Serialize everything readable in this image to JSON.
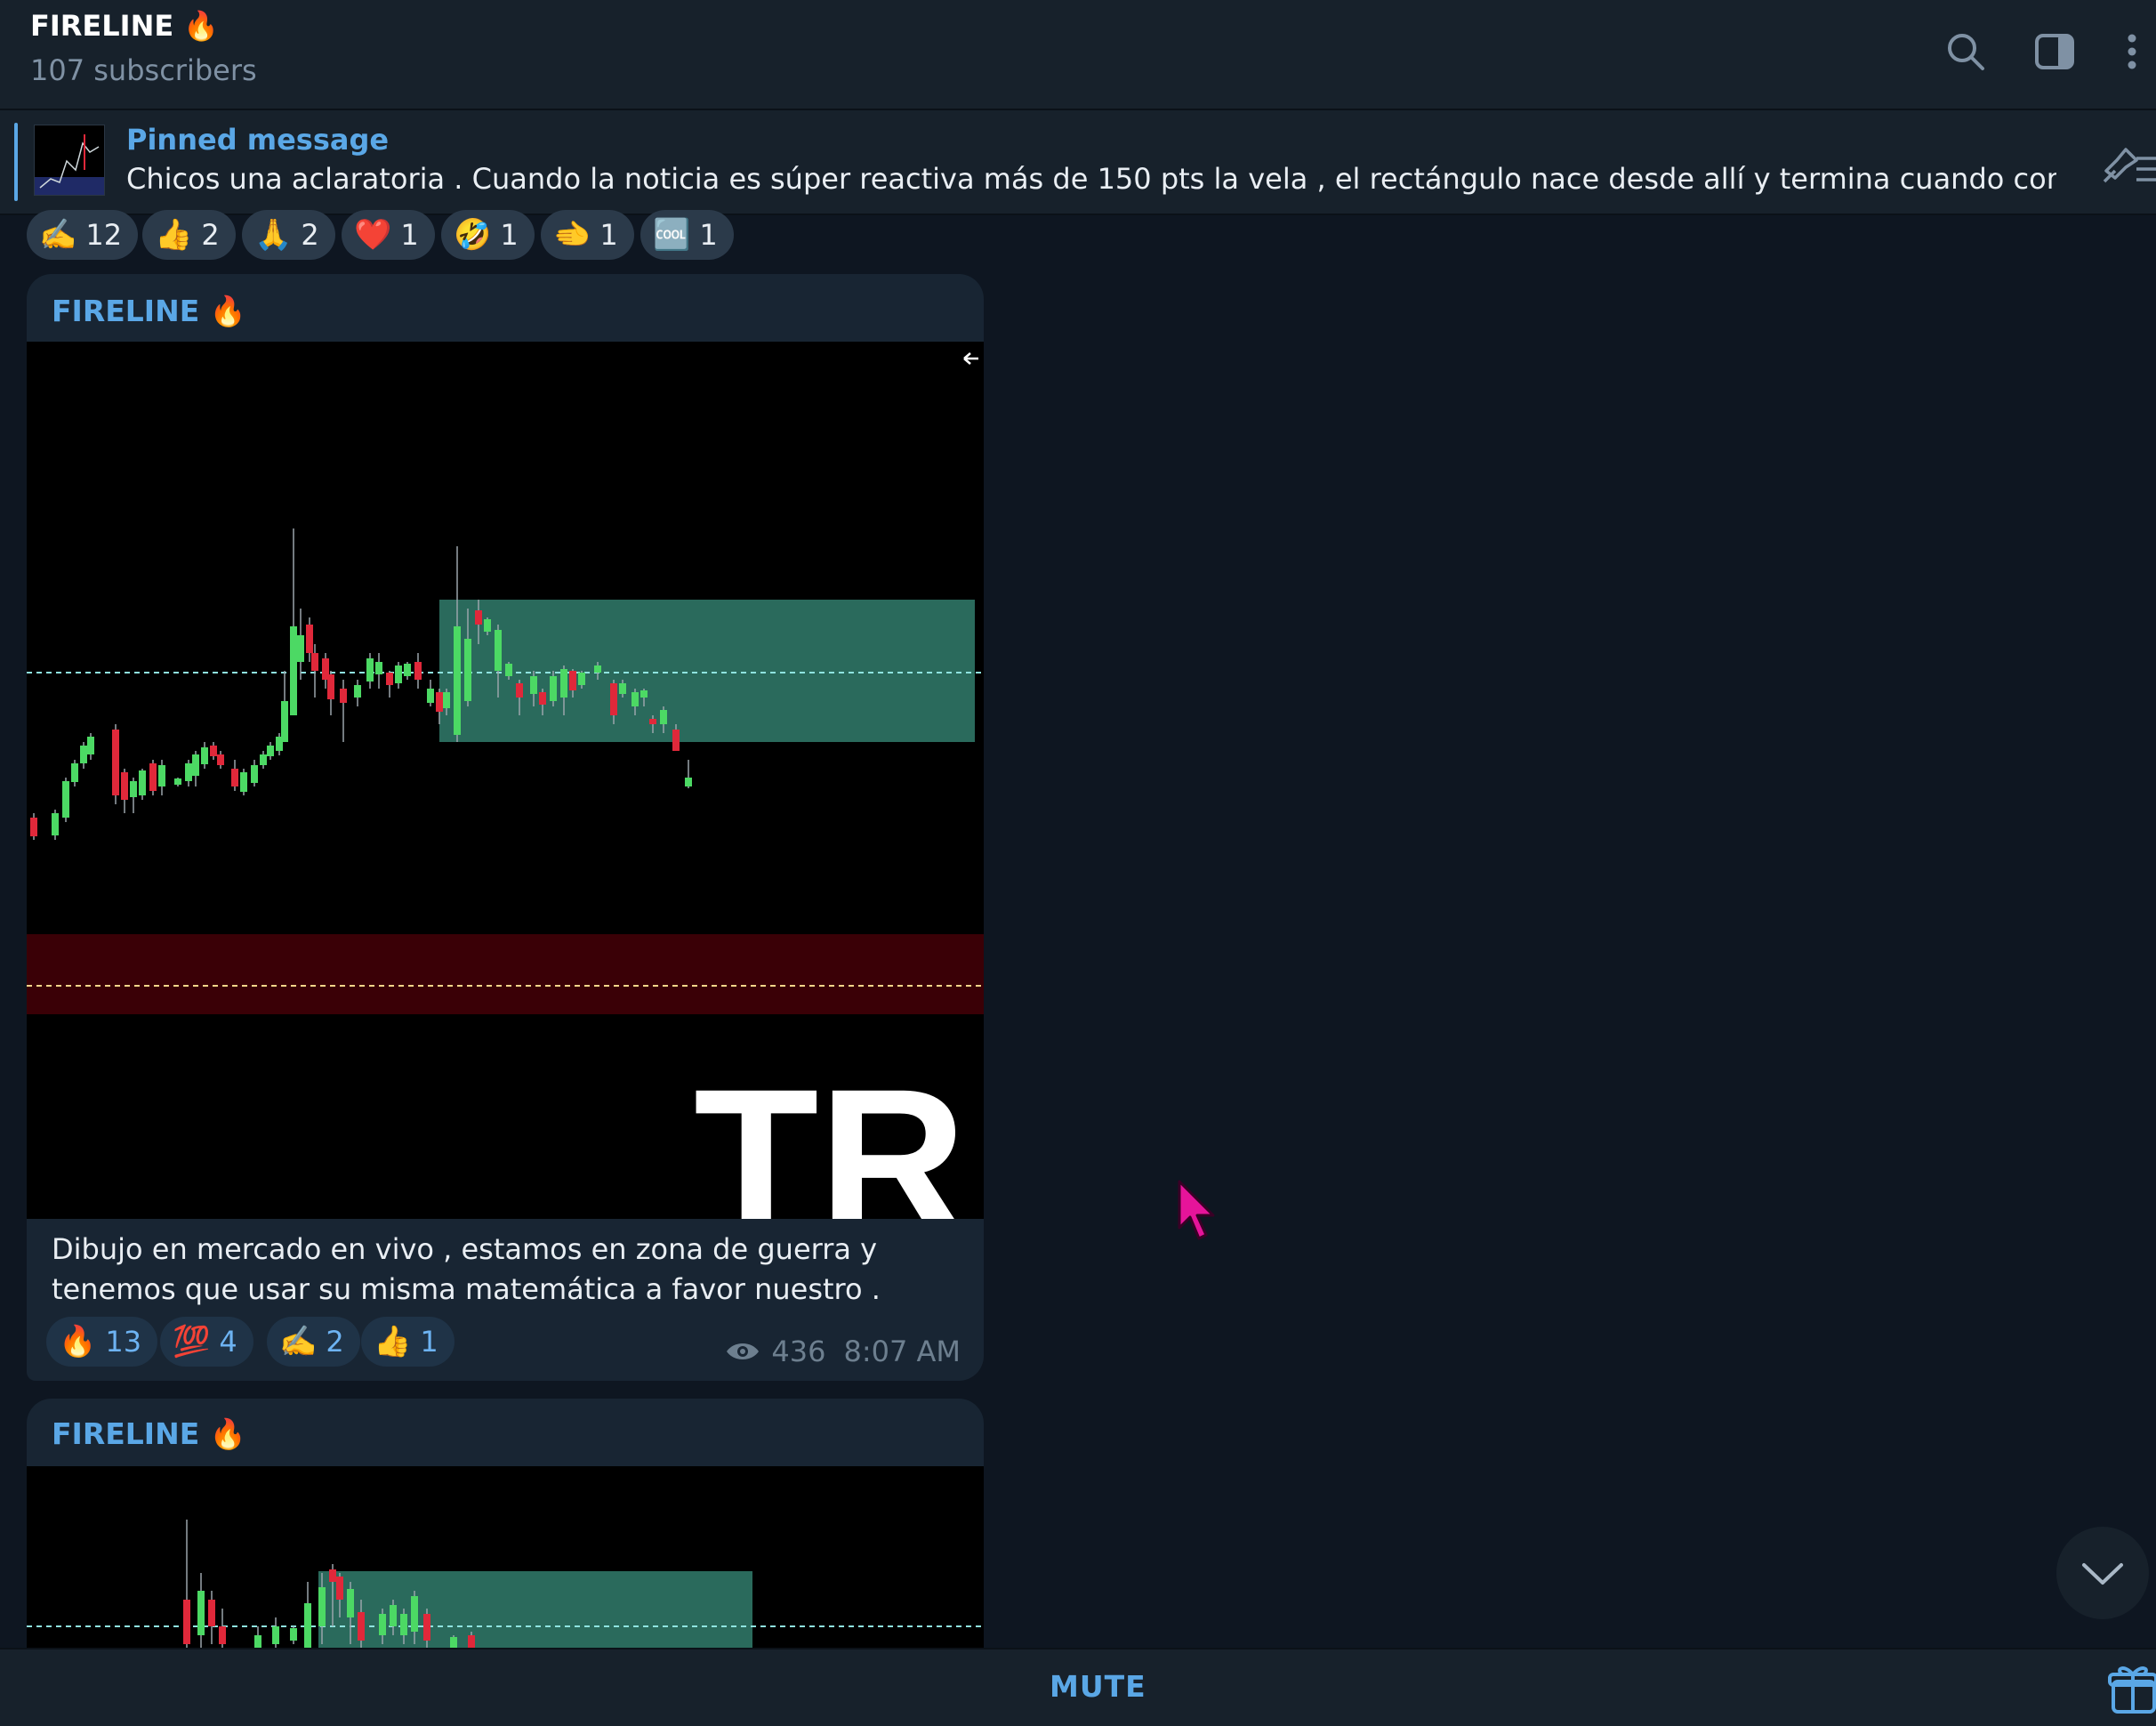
{
  "header": {
    "title": "FIRELINE 🔥",
    "subscribers": "107 subscribers",
    "icons": [
      "search-icon",
      "sidebar-toggle-icon",
      "more-vertical-icon"
    ]
  },
  "pinned": {
    "label": "Pinned message",
    "text": "Chicos una aclaratoria .  Cuando la noticia es súper reactiva más de 150 pts la vela , el rectángulo nace desde allí y termina cuando complete las..."
  },
  "top_reactions": [
    {
      "emoji": "✍️",
      "count": "12"
    },
    {
      "emoji": "👍",
      "count": "2"
    },
    {
      "emoji": "🙏",
      "count": "2"
    },
    {
      "emoji": "❤️",
      "count": "1"
    },
    {
      "emoji": "🤣",
      "count": "1"
    },
    {
      "emoji": "🫲",
      "count": "1"
    },
    {
      "emoji": "🆒",
      "count": "1"
    }
  ],
  "messages": [
    {
      "sender": "FIRELINE 🔥",
      "watermark": "TR",
      "caption": "Dibujo en mercado en vivo , estamos en zona de guerra y tenemos que usar su misma matemática a favor nuestro .",
      "reactions": [
        {
          "emoji": "🔥",
          "count": "13"
        },
        {
          "emoji": "💯",
          "count": "4"
        },
        {
          "emoji": "✍️",
          "count": "2"
        },
        {
          "emoji": "👍",
          "count": "1"
        }
      ],
      "views": "436",
      "time": "8:07 AM"
    },
    {
      "sender": "FIRELINE 🔥"
    }
  ],
  "footer": {
    "mute_label": "MUTE"
  },
  "colors": {
    "background": "#0e1621",
    "panel": "#17212b",
    "bubble": "#182533",
    "accent": "#5aa7e6",
    "bull_candle": "#4cd964",
    "bear_candle": "#e0283a",
    "zone_green": "#2a6a5c",
    "zone_red": "#3a0006"
  }
}
